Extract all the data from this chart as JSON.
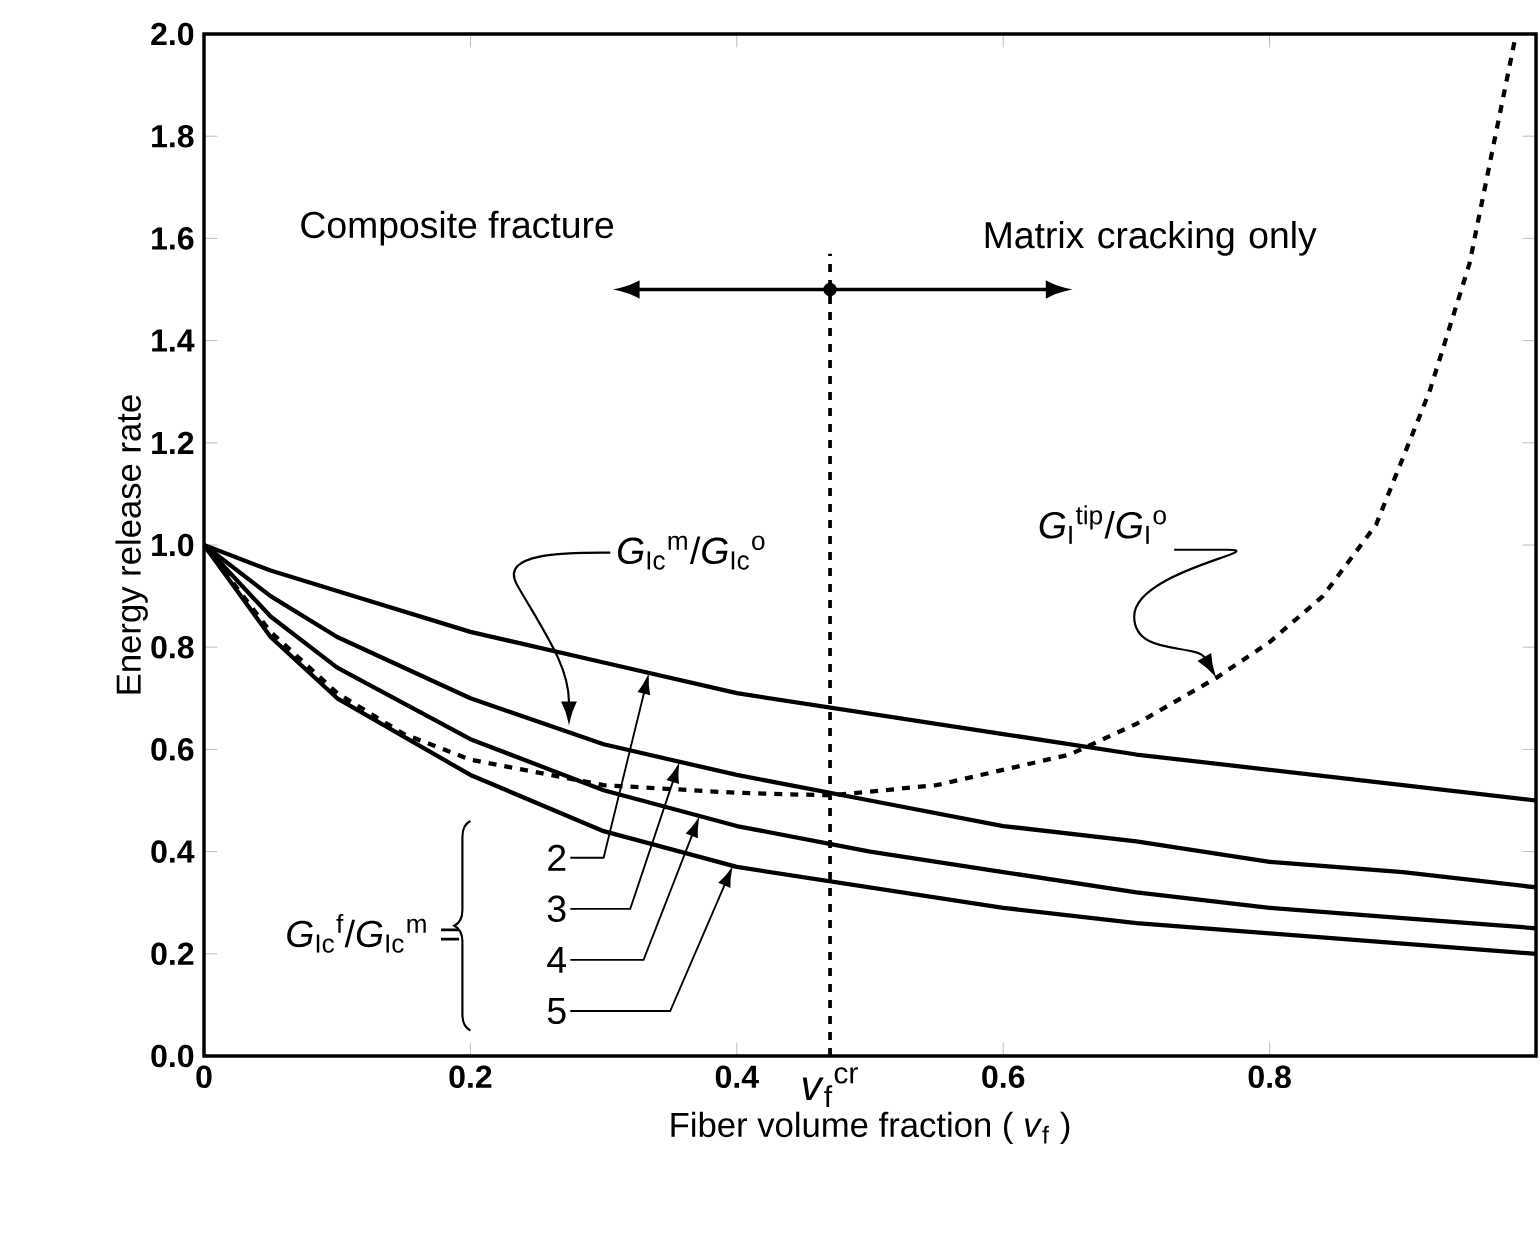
{
  "chart_data": {
    "type": "line",
    "xlabel": "Fiber volume fraction ( *v*$_{f}$ )",
    "ylabel": "Energy release rate",
    "xlim": [
      0,
      1
    ],
    "ylim": [
      0,
      2
    ],
    "xticks": [
      0,
      0.2,
      0.4,
      0.6,
      0.8
    ],
    "yticks": [
      {
        "value": 0,
        "label": "0.0"
      },
      0.2,
      0.4,
      0.6,
      0.8,
      {
        "value": 1,
        "label": "1.0"
      },
      1.2,
      1.4,
      1.6,
      1.8,
      {
        "value": 2,
        "label": "2.0"
      }
    ],
    "grid": false,
    "marker": "none",
    "series": [
      {
        "name": "2",
        "color": "#000000",
        "line_style": "solid",
        "x": [
          0,
          0.05,
          0.1,
          0.2,
          0.3,
          0.4,
          0.5,
          0.6,
          0.7,
          0.8,
          0.9,
          1
        ],
        "values": [
          1,
          0.95,
          0.91,
          0.83,
          0.77,
          0.71,
          0.67,
          0.63,
          0.59,
          0.56,
          0.53,
          0.5
        ]
      },
      {
        "name": "3",
        "color": "#000000",
        "line_style": "solid",
        "x": [
          0,
          0.05,
          0.1,
          0.2,
          0.3,
          0.4,
          0.5,
          0.6,
          0.7,
          0.8,
          0.9,
          1
        ],
        "values": [
          1,
          0.9,
          0.82,
          0.7,
          0.61,
          0.55,
          0.5,
          0.45,
          0.42,
          0.38,
          0.36,
          0.33
        ]
      },
      {
        "name": "4",
        "color": "#000000",
        "line_style": "solid",
        "x": [
          0,
          0.05,
          0.1,
          0.2,
          0.3,
          0.4,
          0.5,
          0.6,
          0.7,
          0.8,
          0.9,
          1
        ],
        "values": [
          1,
          0.86,
          0.76,
          0.62,
          0.52,
          0.45,
          0.4,
          0.36,
          0.32,
          0.29,
          0.27,
          0.25
        ]
      },
      {
        "name": "5",
        "color": "#000000",
        "line_style": "solid",
        "x": [
          0,
          0.05,
          0.1,
          0.2,
          0.3,
          0.4,
          0.5,
          0.6,
          0.7,
          0.8,
          0.9,
          1
        ],
        "values": [
          1,
          0.82,
          0.7,
          0.55,
          0.44,
          0.37,
          0.33,
          0.29,
          0.26,
          0.24,
          0.22,
          0.2
        ]
      },
      {
        "color": "#000000",
        "line_style": "dashed",
        "x": [
          0,
          0.05,
          0.1,
          0.15,
          0.2,
          0.3,
          0.4,
          0.47,
          0.55,
          0.65,
          0.7,
          0.76,
          0.8,
          0.84,
          0.88,
          0.92,
          0.95,
          0.985
        ],
        "values": [
          1,
          0.83,
          0.71,
          0.63,
          0.58,
          0.53,
          0.515,
          0.51,
          0.53,
          0.59,
          0.65,
          0.74,
          0.81,
          0.9,
          1.04,
          1.3,
          1.55,
          2.0
        ]
      }
    ],
    "ref_lines": [
      {
        "axis": "x",
        "value": 0.47,
        "label": "*v*$_{f}$$^{cr}$",
        "line_style": "dashed",
        "color": "#000000"
      }
    ],
    "annotations": [
      "Composite fracture",
      "Matrix cracking only",
      "*G*$_{Ic}$$^{m}$/*G*$_{Ic}$$^{o}$",
      "*G*$_{I}$$^{tip}$/*G*$_{I}$$^{o}$",
      "*G*$_{Ic}$$^{f}$/*G*$_{Ic}$$^{m}$ ="
    ]
  }
}
